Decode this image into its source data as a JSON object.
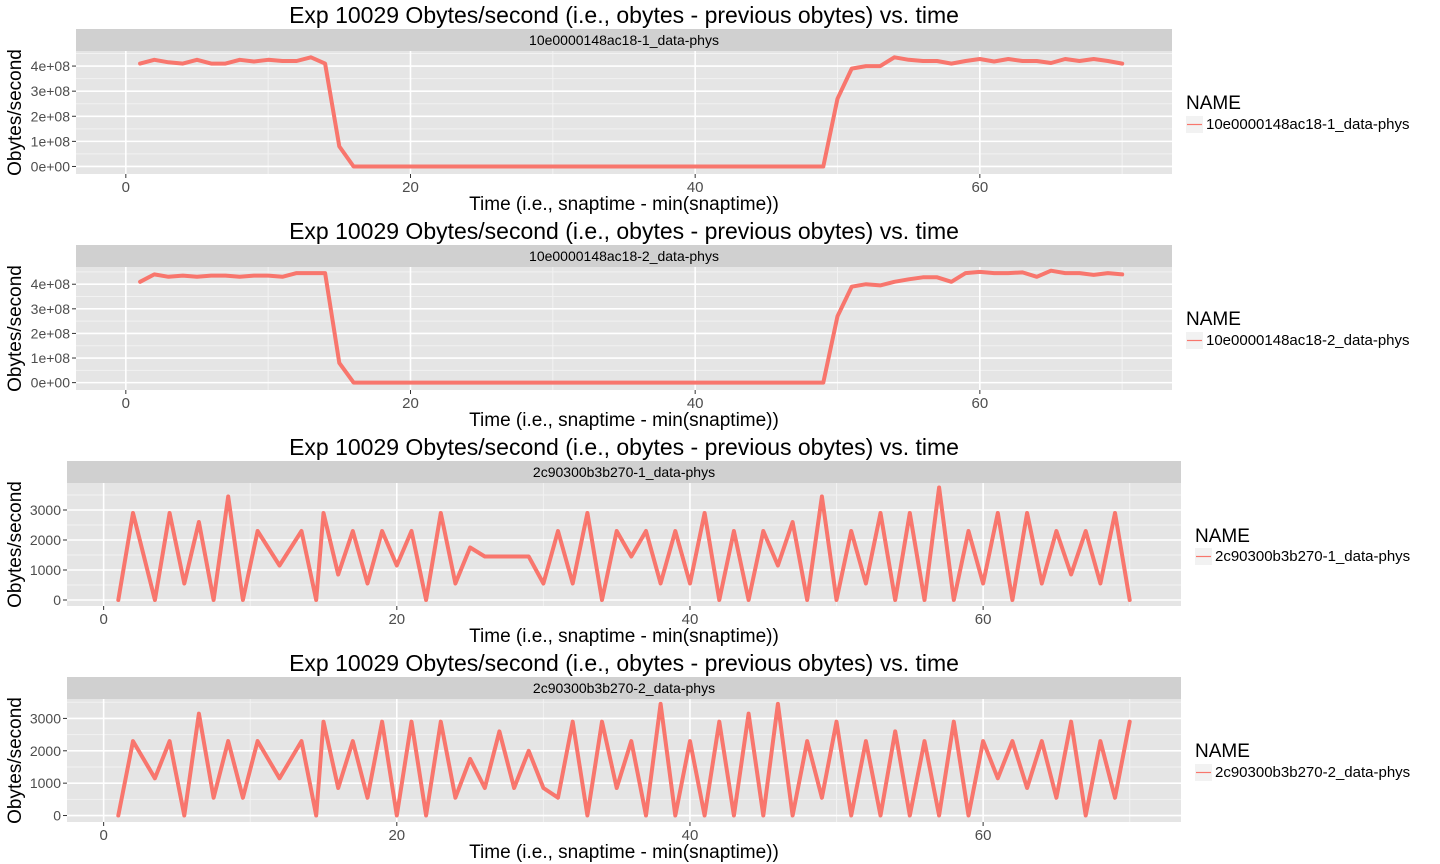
{
  "colors": {
    "line": "#f8766d",
    "panel_bg": "#e5e5e5",
    "strip_bg": "#d0d0d0",
    "grid_major": "#ffffff",
    "grid_minor": "#f2f2f2",
    "text": "#000000",
    "tick_text": "#4d4d4d"
  },
  "chart_data": [
    {
      "type": "line",
      "title": "Exp 10029 Obytes/second (i.e., obytes - previous obytes) vs. time",
      "strip_label": "10e0000148ac18-1_data-phys",
      "xlabel": "Time (i.e., snaptime - min(snaptime))",
      "ylabel": "Obytes/second",
      "xlim": [
        -3.5,
        73.5
      ],
      "ylim": [
        -30000000,
        460000000
      ],
      "xticks": [
        0,
        20,
        40,
        60
      ],
      "xtick_labels": [
        "0",
        "20",
        "40",
        "60"
      ],
      "yticks": [
        0,
        100000000,
        200000000,
        300000000,
        400000000
      ],
      "ytick_labels": [
        "0e+00",
        "1e+08",
        "2e+08",
        "3e+08",
        "4e+08"
      ],
      "grid": true,
      "legend": {
        "title": "NAME",
        "position": "right",
        "entries": [
          "10e0000148ac18-1_data-phys"
        ]
      },
      "series": [
        {
          "name": "10e0000148ac18-1_data-phys",
          "x": [
            1,
            2,
            3,
            4,
            5,
            6,
            7,
            8,
            9,
            10,
            11,
            12,
            13,
            14,
            15,
            16,
            17,
            18,
            19,
            20,
            21,
            22,
            23,
            24,
            25,
            26,
            27,
            28,
            29,
            30,
            31,
            32,
            33,
            34,
            35,
            36,
            37,
            38,
            39,
            40,
            41,
            42,
            43,
            44,
            45,
            46,
            47,
            48,
            49,
            50,
            51,
            52,
            53,
            54,
            55,
            56,
            57,
            58,
            59,
            60,
            61,
            62,
            63,
            64,
            65,
            66,
            67,
            68,
            69,
            70
          ],
          "values": [
            410000000,
            425000000,
            415000000,
            410000000,
            425000000,
            410000000,
            410000000,
            425000000,
            418000000,
            425000000,
            420000000,
            420000000,
            435000000,
            410000000,
            80000000,
            0,
            0,
            0,
            0,
            0,
            0,
            0,
            0,
            0,
            0,
            0,
            0,
            0,
            0,
            0,
            0,
            0,
            0,
            0,
            0,
            0,
            0,
            0,
            0,
            0,
            0,
            0,
            0,
            0,
            0,
            0,
            0,
            0,
            0,
            270000000,
            390000000,
            400000000,
            400000000,
            435000000,
            425000000,
            420000000,
            420000000,
            410000000,
            420000000,
            428000000,
            418000000,
            428000000,
            420000000,
            420000000,
            412000000,
            428000000,
            420000000,
            428000000,
            420000000,
            410000000
          ]
        }
      ]
    },
    {
      "type": "line",
      "title": "Exp 10029 Obytes/second (i.e., obytes - previous obytes) vs. time",
      "strip_label": "10e0000148ac18-2_data-phys",
      "xlabel": "Time (i.e., snaptime - min(snaptime))",
      "ylabel": "Obytes/second",
      "xlim": [
        -3.5,
        73.5
      ],
      "ylim": [
        -30000000,
        470000000
      ],
      "xticks": [
        0,
        20,
        40,
        60
      ],
      "xtick_labels": [
        "0",
        "20",
        "40",
        "60"
      ],
      "yticks": [
        0,
        100000000,
        200000000,
        300000000,
        400000000
      ],
      "ytick_labels": [
        "0e+00",
        "1e+08",
        "2e+08",
        "3e+08",
        "4e+08"
      ],
      "grid": true,
      "legend": {
        "title": "NAME",
        "position": "right",
        "entries": [
          "10e0000148ac18-2_data-phys"
        ]
      },
      "series": [
        {
          "name": "10e0000148ac18-2_data-phys",
          "x": [
            1,
            2,
            3,
            4,
            5,
            6,
            7,
            8,
            9,
            10,
            11,
            12,
            13,
            14,
            15,
            16,
            17,
            18,
            19,
            20,
            21,
            22,
            23,
            24,
            25,
            26,
            27,
            28,
            29,
            30,
            31,
            32,
            33,
            34,
            35,
            36,
            37,
            38,
            39,
            40,
            41,
            42,
            43,
            44,
            45,
            46,
            47,
            48,
            49,
            50,
            51,
            52,
            53,
            54,
            55,
            56,
            57,
            58,
            59,
            60,
            61,
            62,
            63,
            64,
            65,
            66,
            67,
            68,
            69,
            70
          ],
          "values": [
            410000000,
            440000000,
            430000000,
            435000000,
            430000000,
            435000000,
            435000000,
            430000000,
            435000000,
            435000000,
            430000000,
            445000000,
            445000000,
            445000000,
            80000000,
            0,
            0,
            0,
            0,
            0,
            0,
            0,
            0,
            0,
            0,
            0,
            0,
            0,
            0,
            0,
            0,
            0,
            0,
            0,
            0,
            0,
            0,
            0,
            0,
            0,
            0,
            0,
            0,
            0,
            0,
            0,
            0,
            0,
            0,
            270000000,
            390000000,
            400000000,
            395000000,
            410000000,
            420000000,
            428000000,
            428000000,
            410000000,
            445000000,
            450000000,
            445000000,
            445000000,
            448000000,
            430000000,
            455000000,
            445000000,
            445000000,
            438000000,
            445000000,
            440000000
          ]
        }
      ]
    },
    {
      "type": "line",
      "title": "Exp 10029 Obytes/second (i.e., obytes - previous obytes) vs. time",
      "strip_label": "2c90300b3b270-1_data-phys",
      "xlabel": "Time (i.e., snaptime - min(snaptime))",
      "ylabel": "Obytes/second",
      "xlim": [
        -2.5,
        73.5
      ],
      "ylim": [
        -200,
        3900
      ],
      "xticks": [
        0,
        20,
        40,
        60
      ],
      "xtick_labels": [
        "0",
        "20",
        "40",
        "60"
      ],
      "yticks": [
        0,
        1000,
        2000,
        3000
      ],
      "ytick_labels": [
        "0",
        "1000",
        "2000",
        "3000"
      ],
      "grid": true,
      "legend": {
        "title": "NAME",
        "position": "right",
        "entries": [
          "2c90300b3b270-1_data-phys"
        ]
      },
      "series": [
        {
          "name": "2c90300b3b270-1_data-phys",
          "x": [
            1,
            2,
            3.5,
            4.5,
            5.5,
            6.5,
            7.5,
            8.5,
            9.5,
            10.5,
            12,
            13.5,
            14.5,
            15,
            16,
            17,
            18,
            19,
            20,
            21,
            22,
            23,
            24,
            25,
            26,
            27,
            28,
            29,
            30,
            31,
            32,
            33,
            34,
            35,
            36,
            37,
            38,
            39,
            40,
            41,
            42,
            43,
            44,
            45,
            46,
            47,
            48,
            49,
            50,
            51,
            52,
            53,
            54,
            55,
            56,
            57,
            58,
            59,
            60,
            61,
            62,
            63,
            64,
            65,
            66,
            67,
            68,
            69,
            70
          ],
          "values": [
            0,
            2900,
            0,
            2900,
            550,
            2600,
            0,
            3450,
            0,
            2300,
            1150,
            2300,
            0,
            2900,
            850,
            2300,
            550,
            2300,
            1150,
            2300,
            0,
            2900,
            550,
            1750,
            1450,
            1450,
            1450,
            1450,
            550,
            2300,
            550,
            2900,
            0,
            2300,
            1450,
            2300,
            550,
            2300,
            550,
            2900,
            0,
            2300,
            0,
            2300,
            1150,
            2600,
            0,
            3450,
            0,
            2300,
            550,
            2900,
            0,
            2900,
            0,
            3750,
            0,
            2300,
            550,
            2900,
            0,
            2900,
            550,
            2300,
            850,
            2300,
            550,
            2900,
            0
          ]
        }
      ]
    },
    {
      "type": "line",
      "title": "Exp 10029 Obytes/second (i.e., obytes - previous obytes) vs. time",
      "strip_label": "2c90300b3b270-2_data-phys",
      "xlabel": "Time (i.e., snaptime - min(snaptime))",
      "ylabel": "Obytes/second",
      "xlim": [
        -2.5,
        73.5
      ],
      "ylim": [
        -200,
        3600
      ],
      "xticks": [
        0,
        20,
        40,
        60
      ],
      "xtick_labels": [
        "0",
        "20",
        "40",
        "60"
      ],
      "yticks": [
        0,
        1000,
        2000,
        3000
      ],
      "ytick_labels": [
        "0",
        "1000",
        "2000",
        "3000"
      ],
      "grid": true,
      "legend": {
        "title": "NAME",
        "position": "right",
        "entries": [
          "2c90300b3b270-2_data-phys"
        ]
      },
      "series": [
        {
          "name": "2c90300b3b270-2_data-phys",
          "x": [
            1,
            2,
            3.5,
            4.5,
            5.5,
            6.5,
            7.5,
            8.5,
            9.5,
            10.5,
            12,
            13.5,
            14.5,
            15,
            16,
            17,
            18,
            19,
            20,
            21,
            22,
            23,
            24,
            25,
            26,
            27,
            28,
            29,
            30,
            31,
            32,
            33,
            34,
            35,
            36,
            37,
            38,
            39,
            40,
            41,
            42,
            43,
            44,
            45,
            46,
            47,
            48,
            49,
            50,
            51,
            52,
            53,
            54,
            55,
            56,
            57,
            58,
            59,
            60,
            61,
            62,
            63,
            64,
            65,
            66,
            67,
            68,
            69,
            70
          ],
          "values": [
            0,
            2300,
            1150,
            2300,
            0,
            3150,
            550,
            2300,
            550,
            2300,
            1150,
            2300,
            0,
            2900,
            850,
            2300,
            550,
            2900,
            0,
            2900,
            0,
            2900,
            550,
            1750,
            850,
            2600,
            850,
            2000,
            850,
            550,
            2900,
            0,
            2900,
            850,
            2300,
            0,
            3450,
            0,
            2300,
            0,
            2900,
            0,
            3150,
            0,
            3450,
            0,
            2300,
            550,
            2900,
            0,
            2300,
            0,
            2600,
            0,
            2300,
            0,
            2900,
            0,
            2300,
            1150,
            2300,
            850,
            2300,
            550,
            2900,
            0,
            2300,
            550,
            2900
          ]
        }
      ]
    }
  ]
}
